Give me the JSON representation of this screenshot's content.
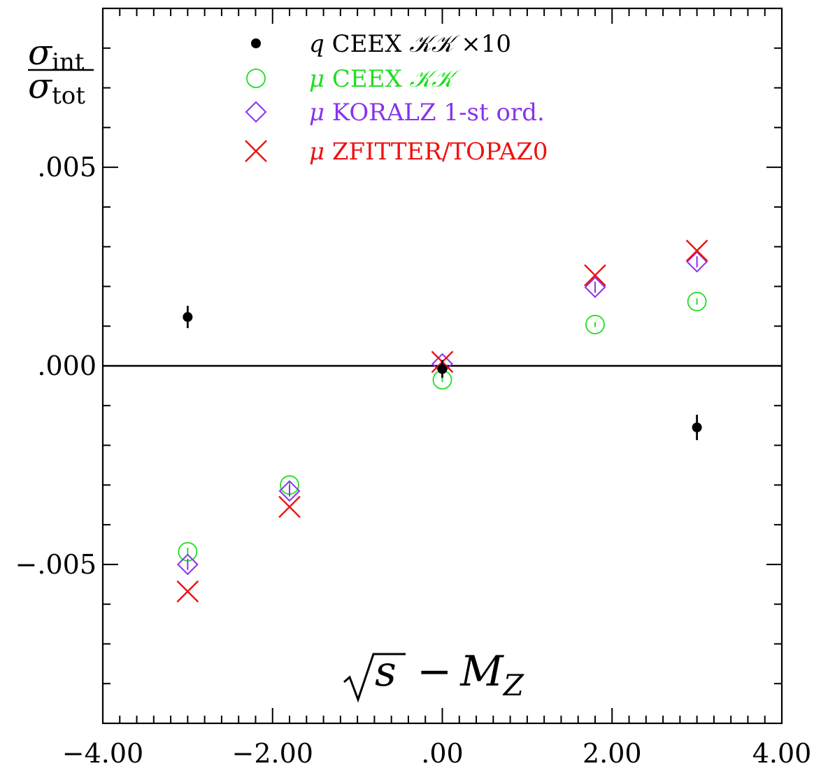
{
  "chart_data": {
    "type": "scatter",
    "title": "",
    "xlabel_parts": {
      "radical": "√",
      "s": "s",
      "minus": "−",
      "M": "M",
      "sub": "Z"
    },
    "ylabel_parts": {
      "sigma": "σ",
      "num_sub": "int",
      "den_sub": "tot"
    },
    "xlim": [
      -4.0,
      4.0
    ],
    "ylim": [
      -0.009,
      0.009
    ],
    "x_ticks": [
      {
        "value": -4.0,
        "label": "−4.00"
      },
      {
        "value": -2.0,
        "label": "−2.00"
      },
      {
        "value": 0.0,
        "label": ".00"
      },
      {
        "value": 2.0,
        "label": "2.00"
      },
      {
        "value": 4.0,
        "label": "4.00"
      }
    ],
    "y_ticks": [
      {
        "value": 0.005,
        "label": ".005"
      },
      {
        "value": 0.0,
        "label": ".000"
      },
      {
        "value": -0.005,
        "label": "−.005"
      }
    ],
    "zero_line": true,
    "legend_position": "top-center",
    "series": [
      {
        "name_prefix": "q",
        "name_text": " CEEX ",
        "name_kk": "𝒦𝒦",
        "name_suffix": " ×10",
        "marker": "dot",
        "color": "#000000",
        "points": [
          {
            "x": -3.0,
            "y": 0.00123,
            "err": 0.00028
          },
          {
            "x": 0.0,
            "y": -8e-05,
            "err": 0.00022
          },
          {
            "x": 3.0,
            "y": -0.00155,
            "err": 0.00032
          }
        ]
      },
      {
        "name_prefix": "μ",
        "name_text": " CEEX ",
        "name_kk": "𝒦𝒦",
        "name_suffix": "",
        "marker": "circle",
        "color": "#22dd22",
        "points": [
          {
            "x": -3.0,
            "y": -0.00468,
            "err": 0.0001
          },
          {
            "x": -1.8,
            "y": -0.003,
            "err": 8e-05
          },
          {
            "x": 0.0,
            "y": -0.00035,
            "err": 6e-05
          },
          {
            "x": 1.8,
            "y": 0.00104,
            "err": 6e-05
          },
          {
            "x": 3.0,
            "y": 0.00162,
            "err": 8e-05
          }
        ]
      },
      {
        "name_prefix": "μ",
        "name_text": " KORALZ 1-st ord.",
        "name_kk": "",
        "name_suffix": "",
        "marker": "diamond",
        "color": "#8833ee",
        "points": [
          {
            "x": -3.0,
            "y": -0.005,
            "err": 0.00014
          },
          {
            "x": -1.8,
            "y": -0.00315,
            "err": 0.00014
          },
          {
            "x": 0.0,
            "y": 5e-05,
            "err": 0.0001
          },
          {
            "x": 1.8,
            "y": 0.00198,
            "err": 0.00014
          },
          {
            "x": 3.0,
            "y": 0.00262,
            "err": 0.00014
          }
        ]
      },
      {
        "name_prefix": "μ",
        "name_text": " ZFITTER/TOPAZ0",
        "name_kk": "",
        "name_suffix": "",
        "marker": "cross",
        "color": "#ee1111",
        "points": [
          {
            "x": -3.0,
            "y": -0.00568
          },
          {
            "x": -1.8,
            "y": -0.00355
          },
          {
            "x": 0.0,
            "y": 0.0001
          },
          {
            "x": 1.8,
            "y": 0.00228
          },
          {
            "x": 3.0,
            "y": 0.0029
          }
        ]
      }
    ]
  }
}
